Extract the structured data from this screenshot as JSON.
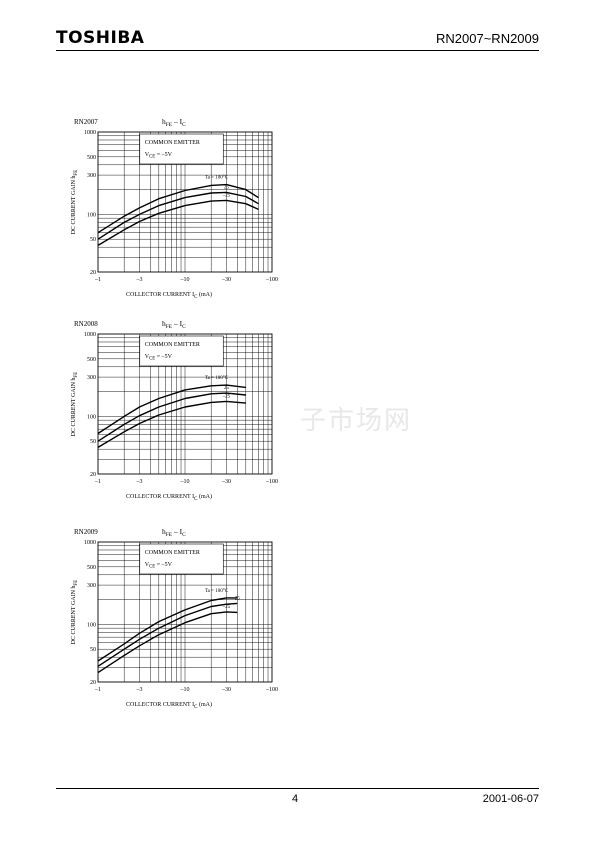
{
  "header": {
    "logo": "TOSHIBA",
    "part_numbers": "RN2007~RN2009"
  },
  "footer": {
    "page_number": "4",
    "date": "2001-06-07"
  },
  "watermark": "子市场网",
  "chart_data": [
    {
      "type": "line",
      "device": "RN2007",
      "title_main": "h",
      "title_sub": "FE",
      "title_tail": " – I",
      "title_sub2": "C",
      "xlabel": "COLLECTOR CURRENT",
      "xlabel_sym": "I",
      "xlabel_sub": "C",
      "xlabel_unit": "(mA)",
      "ylabel": "DC CURRENT GAIN",
      "ylabel_sym": "h",
      "ylabel_sub": "FE",
      "x_scale": "log",
      "y_scale": "log",
      "xlim": [
        -1,
        -100
      ],
      "ylim": [
        20,
        1000
      ],
      "x_ticks": [
        "–1",
        "–3",
        "–10",
        "–30",
        "–100"
      ],
      "y_ticks": [
        "1000",
        "500",
        "300",
        "100",
        "50",
        "20"
      ],
      "condition_title": "COMMON EMITTER",
      "condition": "V",
      "condition_sub": "CE",
      "condition_val": "= –5V",
      "series": [
        {
          "name": "Ta = 100°C",
          "x": [
            -1,
            -2,
            -3,
            -5,
            -10,
            -20,
            -30,
            -50,
            -70
          ],
          "y": [
            60,
            95,
            120,
            155,
            195,
            225,
            230,
            200,
            160
          ]
        },
        {
          "name": "25",
          "x": [
            -1,
            -2,
            -3,
            -5,
            -10,
            -20,
            -30,
            -50,
            -70
          ],
          "y": [
            50,
            80,
            100,
            128,
            160,
            182,
            185,
            165,
            135
          ]
        },
        {
          "name": "–25",
          "x": [
            -1,
            -2,
            -3,
            -5,
            -10,
            -20,
            -30,
            -50,
            -70
          ],
          "y": [
            42,
            65,
            82,
            103,
            128,
            145,
            148,
            135,
            115
          ]
        }
      ]
    },
    {
      "type": "line",
      "device": "RN2008",
      "title_main": "h",
      "title_sub": "FE",
      "title_tail": " – I",
      "title_sub2": "C",
      "xlabel": "COLLECTOR CURRENT",
      "xlabel_sym": "I",
      "xlabel_sub": "C",
      "xlabel_unit": "(mA)",
      "ylabel": "DC CURRENT GAIN",
      "ylabel_sym": "h",
      "ylabel_sub": "FE",
      "x_scale": "log",
      "y_scale": "log",
      "xlim": [
        -1,
        -100
      ],
      "ylim": [
        20,
        1000
      ],
      "x_ticks": [
        "–1",
        "–3",
        "–10",
        "–30",
        "–100"
      ],
      "y_ticks": [
        "1000",
        "500",
        "300",
        "100",
        "50",
        "20"
      ],
      "condition_title": "COMMON EMITTER",
      "condition": "V",
      "condition_sub": "CE",
      "condition_val": "= –5V",
      "series": [
        {
          "name": "Ta = 100°C",
          "x": [
            -1,
            -2,
            -3,
            -5,
            -10,
            -20,
            -30,
            -50
          ],
          "y": [
            62,
            100,
            130,
            165,
            210,
            235,
            240,
            225
          ]
        },
        {
          "name": "25",
          "x": [
            -1,
            -2,
            -3,
            -5,
            -10,
            -20,
            -30,
            -50
          ],
          "y": [
            50,
            80,
            102,
            130,
            165,
            188,
            192,
            182
          ]
        },
        {
          "name": "–25",
          "x": [
            -1,
            -2,
            -3,
            -5,
            -10,
            -20,
            -30,
            -50
          ],
          "y": [
            42,
            65,
            82,
            104,
            130,
            148,
            152,
            145
          ]
        }
      ]
    },
    {
      "type": "line",
      "device": "RN2009",
      "title_main": "h",
      "title_sub": "FE",
      "title_tail": " – I",
      "title_sub2": "C",
      "xlabel": "COLLECTOR CURRENT",
      "xlabel_sym": "I",
      "xlabel_sub": "C",
      "xlabel_unit": "(mA)",
      "ylabel": "DC CURRENT GAIN",
      "ylabel_sym": "h",
      "ylabel_sub": "FE",
      "x_scale": "log",
      "y_scale": "log",
      "xlim": [
        -1,
        -100
      ],
      "ylim": [
        20,
        1000
      ],
      "x_ticks": [
        "–1",
        "–3",
        "–10",
        "–30",
        "–100"
      ],
      "y_ticks": [
        "1000",
        "500",
        "300",
        "100",
        "50",
        "20"
      ],
      "condition_title": "COMMON EMITTER",
      "condition": "V",
      "condition_sub": "CE",
      "condition_val": "= –5V",
      "series": [
        {
          "name": "Ta = 100°C",
          "x": [
            -1,
            -2,
            -3,
            -5,
            -10,
            -20,
            -30,
            -40
          ],
          "y": [
            36,
            58,
            78,
            108,
            150,
            195,
            210,
            210
          ]
        },
        {
          "name": "25",
          "x": [
            -1,
            -2,
            -3,
            -5,
            -10,
            -20,
            -30,
            -40
          ],
          "y": [
            31,
            50,
            66,
            90,
            128,
            165,
            176,
            180
          ]
        },
        {
          "name": "–25",
          "x": [
            -1,
            -2,
            -3,
            -5,
            -10,
            -20,
            -30,
            -40
          ],
          "y": [
            26,
            42,
            55,
            75,
            105,
            135,
            142,
            140
          ]
        }
      ]
    }
  ]
}
